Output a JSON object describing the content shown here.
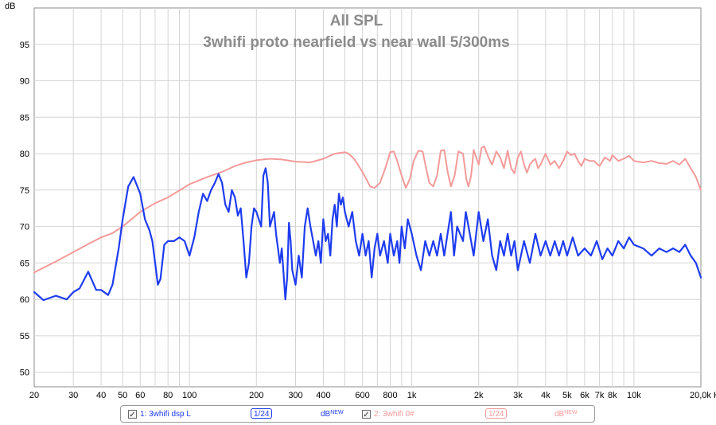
{
  "chart_data": {
    "type": "line",
    "title": "All SPL",
    "subtitle": "3whifi proto nearfield vs near wall 5/300ms",
    "ylabel": "dB",
    "xunit": "Hz",
    "xscale": "log",
    "xlim": [
      20,
      20000
    ],
    "ylim": [
      48,
      100
    ],
    "yticks": [
      50,
      55,
      60,
      65,
      70,
      75,
      80,
      85,
      90,
      95
    ],
    "xticks": [
      {
        "v": 20,
        "label": "20"
      },
      {
        "v": 30,
        "label": "30"
      },
      {
        "v": 40,
        "label": "40"
      },
      {
        "v": 50,
        "label": "50"
      },
      {
        "v": 60,
        "label": "60"
      },
      {
        "v": 80,
        "label": "80"
      },
      {
        "v": 100,
        "label": "100"
      },
      {
        "v": 200,
        "label": "200"
      },
      {
        "v": 300,
        "label": "300"
      },
      {
        "v": 400,
        "label": "400"
      },
      {
        "v": 600,
        "label": "600"
      },
      {
        "v": 800,
        "label": "800"
      },
      {
        "v": 1000,
        "label": "1k"
      },
      {
        "v": 2000,
        "label": "2k"
      },
      {
        "v": 3000,
        "label": "3k"
      },
      {
        "v": 4000,
        "label": "4k"
      },
      {
        "v": 5000,
        "label": "5k"
      },
      {
        "v": 6000,
        "label": "6k"
      },
      {
        "v": 7000,
        "label": "7k"
      },
      {
        "v": 8000,
        "label": "8k"
      },
      {
        "v": 10000,
        "label": "10k"
      },
      {
        "v": 20000,
        "label": "20,0k Hz"
      }
    ],
    "grid": true,
    "legend": "bottom",
    "series": [
      {
        "name": "1: 3whifi dsp L",
        "color": "#1e3cf0",
        "smoothing": "1/24",
        "unit_label": "dB",
        "unit_badge": "NEW",
        "points": [
          [
            20,
            61.0
          ],
          [
            22,
            59.9
          ],
          [
            25,
            60.5
          ],
          [
            28,
            60.0
          ],
          [
            30,
            61.0
          ],
          [
            32,
            61.5
          ],
          [
            35,
            63.8
          ],
          [
            38,
            61.3
          ],
          [
            40,
            61.3
          ],
          [
            43,
            60.6
          ],
          [
            45,
            62.0
          ],
          [
            48,
            67.0
          ],
          [
            50,
            71.0
          ],
          [
            53,
            75.5
          ],
          [
            56,
            76.8
          ],
          [
            60,
            74.5
          ],
          [
            63,
            71.0
          ],
          [
            66,
            69.5
          ],
          [
            68,
            68.0
          ],
          [
            70,
            65.0
          ],
          [
            72,
            62.0
          ],
          [
            74,
            62.8
          ],
          [
            77,
            67.5
          ],
          [
            80,
            68.0
          ],
          [
            85,
            68.0
          ],
          [
            90,
            68.5
          ],
          [
            95,
            68.0
          ],
          [
            100,
            66.0
          ],
          [
            105,
            68.5
          ],
          [
            110,
            72.0
          ],
          [
            115,
            74.5
          ],
          [
            120,
            73.5
          ],
          [
            125,
            75.0
          ],
          [
            130,
            76.0
          ],
          [
            135,
            77.2
          ],
          [
            140,
            76.0
          ],
          [
            145,
            73.0
          ],
          [
            150,
            72.0
          ],
          [
            155,
            75.0
          ],
          [
            160,
            74.0
          ],
          [
            165,
            71.5
          ],
          [
            170,
            72.5
          ],
          [
            175,
            68.0
          ],
          [
            180,
            63.0
          ],
          [
            185,
            65.0
          ],
          [
            190,
            70.0
          ],
          [
            195,
            72.5
          ],
          [
            200,
            72.0
          ],
          [
            210,
            70.0
          ],
          [
            215,
            77.0
          ],
          [
            220,
            78.0
          ],
          [
            225,
            76.0
          ],
          [
            230,
            70.0
          ],
          [
            240,
            72.0
          ],
          [
            245,
            69.0
          ],
          [
            250,
            67.0
          ],
          [
            255,
            65.0
          ],
          [
            260,
            67.0
          ],
          [
            270,
            60.0
          ],
          [
            275,
            63.0
          ],
          [
            280,
            70.5
          ],
          [
            285,
            68.0
          ],
          [
            290,
            64.0
          ],
          [
            300,
            62.0
          ],
          [
            310,
            66.0
          ],
          [
            320,
            63.0
          ],
          [
            330,
            70.0
          ],
          [
            340,
            72.5
          ],
          [
            350,
            70.0
          ],
          [
            360,
            68.0
          ],
          [
            370,
            66.0
          ],
          [
            380,
            68.0
          ],
          [
            390,
            65.0
          ],
          [
            400,
            71.0
          ],
          [
            410,
            68.0
          ],
          [
            420,
            69.0
          ],
          [
            430,
            66.0
          ],
          [
            440,
            71.0
          ],
          [
            450,
            73.0
          ],
          [
            460,
            70.0
          ],
          [
            470,
            74.5
          ],
          [
            480,
            73.0
          ],
          [
            490,
            74.0
          ],
          [
            500,
            72.0
          ],
          [
            520,
            70.0
          ],
          [
            540,
            72.0
          ],
          [
            560,
            68.0
          ],
          [
            580,
            66.0
          ],
          [
            600,
            69.0
          ],
          [
            620,
            66.0
          ],
          [
            640,
            68.0
          ],
          [
            660,
            63.0
          ],
          [
            680,
            67.0
          ],
          [
            700,
            69.0
          ],
          [
            720,
            66.0
          ],
          [
            750,
            68.0
          ],
          [
            780,
            65.0
          ],
          [
            800,
            69.0
          ],
          [
            830,
            66.0
          ],
          [
            860,
            68.0
          ],
          [
            880,
            65.0
          ],
          [
            900,
            70.0
          ],
          [
            930,
            67.0
          ],
          [
            960,
            71.0
          ],
          [
            1000,
            69.0
          ],
          [
            1050,
            66.0
          ],
          [
            1100,
            64.0
          ],
          [
            1150,
            68.0
          ],
          [
            1200,
            66.0
          ],
          [
            1250,
            68.0
          ],
          [
            1300,
            66.0
          ],
          [
            1350,
            69.0
          ],
          [
            1400,
            66.0
          ],
          [
            1500,
            72.0
          ],
          [
            1550,
            66.0
          ],
          [
            1600,
            70.0
          ],
          [
            1700,
            68.0
          ],
          [
            1750,
            72.0
          ],
          [
            1800,
            70.0
          ],
          [
            1900,
            66.0
          ],
          [
            2000,
            72.0
          ],
          [
            2100,
            68.0
          ],
          [
            2200,
            71.0
          ],
          [
            2300,
            66.0
          ],
          [
            2400,
            64.0
          ],
          [
            2500,
            68.0
          ],
          [
            2600,
            66.0
          ],
          [
            2700,
            69.0
          ],
          [
            2800,
            66.0
          ],
          [
            2900,
            68.0
          ],
          [
            3000,
            64.0
          ],
          [
            3200,
            68.0
          ],
          [
            3400,
            65.0
          ],
          [
            3600,
            69.0
          ],
          [
            3800,
            66.0
          ],
          [
            4000,
            68.0
          ],
          [
            4200,
            66.0
          ],
          [
            4400,
            68.0
          ],
          [
            4600,
            66.0
          ],
          [
            4800,
            68.0
          ],
          [
            5000,
            66.0
          ],
          [
            5300,
            68.5
          ],
          [
            5600,
            66.0
          ],
          [
            6000,
            67.0
          ],
          [
            6400,
            66.0
          ],
          [
            6800,
            68.0
          ],
          [
            7200,
            65.5
          ],
          [
            7600,
            67.0
          ],
          [
            8000,
            66.0
          ],
          [
            8500,
            68.0
          ],
          [
            9000,
            67.0
          ],
          [
            9500,
            68.5
          ],
          [
            10000,
            67.5
          ],
          [
            11000,
            67.0
          ],
          [
            12000,
            66.0
          ],
          [
            13000,
            67.0
          ],
          [
            14000,
            66.5
          ],
          [
            15000,
            67.0
          ],
          [
            16000,
            66.5
          ],
          [
            17000,
            67.5
          ],
          [
            18000,
            66.0
          ],
          [
            19000,
            65.0
          ],
          [
            20000,
            63.0
          ]
        ]
      },
      {
        "name": "2: 3whifi 0#",
        "color": "#f49a9a",
        "smoothing": "1/24",
        "unit_label": "dB",
        "unit_badge": "NEW",
        "points": [
          [
            20,
            63.7
          ],
          [
            25,
            65.2
          ],
          [
            30,
            66.5
          ],
          [
            35,
            67.6
          ],
          [
            40,
            68.5
          ],
          [
            45,
            69.1
          ],
          [
            50,
            70.0
          ],
          [
            60,
            72.0
          ],
          [
            70,
            73.2
          ],
          [
            80,
            74.0
          ],
          [
            100,
            75.8
          ],
          [
            120,
            76.8
          ],
          [
            140,
            77.5
          ],
          [
            160,
            78.3
          ],
          [
            180,
            78.8
          ],
          [
            200,
            79.1
          ],
          [
            230,
            79.3
          ],
          [
            260,
            79.2
          ],
          [
            300,
            78.9
          ],
          [
            350,
            78.8
          ],
          [
            400,
            79.3
          ],
          [
            450,
            80.0
          ],
          [
            500,
            80.2
          ],
          [
            520,
            80.0
          ],
          [
            550,
            79.3
          ],
          [
            600,
            77.5
          ],
          [
            650,
            75.5
          ],
          [
            680,
            75.3
          ],
          [
            720,
            76.0
          ],
          [
            760,
            78.0
          ],
          [
            800,
            80.2
          ],
          [
            830,
            80.3
          ],
          [
            860,
            79.0
          ],
          [
            900,
            77.0
          ],
          [
            940,
            75.3
          ],
          [
            980,
            76.5
          ],
          [
            1020,
            79.0
          ],
          [
            1070,
            80.4
          ],
          [
            1120,
            80.3
          ],
          [
            1160,
            78.0
          ],
          [
            1200,
            76.0
          ],
          [
            1250,
            75.5
          ],
          [
            1300,
            77.0
          ],
          [
            1350,
            80.4
          ],
          [
            1400,
            80.5
          ],
          [
            1450,
            77.5
          ],
          [
            1500,
            75.5
          ],
          [
            1560,
            77.0
          ],
          [
            1620,
            80.3
          ],
          [
            1700,
            80.0
          ],
          [
            1760,
            76.5
          ],
          [
            1800,
            75.5
          ],
          [
            1850,
            77.0
          ],
          [
            1900,
            80.5
          ],
          [
            1950,
            79.5
          ],
          [
            2000,
            78.5
          ],
          [
            2060,
            80.8
          ],
          [
            2120,
            81.0
          ],
          [
            2180,
            80.0
          ],
          [
            2250,
            79.0
          ],
          [
            2300,
            78.5
          ],
          [
            2400,
            80.3
          ],
          [
            2500,
            79.5
          ],
          [
            2600,
            78.0
          ],
          [
            2700,
            80.4
          ],
          [
            2800,
            78.0
          ],
          [
            2900,
            77.3
          ],
          [
            3000,
            79.5
          ],
          [
            3100,
            80.3
          ],
          [
            3200,
            78.5
          ],
          [
            3300,
            77.4
          ],
          [
            3400,
            78.5
          ],
          [
            3500,
            79.0
          ],
          [
            3600,
            79.3
          ],
          [
            3700,
            78.0
          ],
          [
            3800,
            78.5
          ],
          [
            4000,
            80.0
          ],
          [
            4200,
            78.5
          ],
          [
            4400,
            79.0
          ],
          [
            4600,
            78.0
          ],
          [
            4800,
            79.0
          ],
          [
            5000,
            80.3
          ],
          [
            5200,
            79.8
          ],
          [
            5400,
            80.0
          ],
          [
            5600,
            79.0
          ],
          [
            5800,
            78.3
          ],
          [
            6000,
            79.3
          ],
          [
            6300,
            79.0
          ],
          [
            6600,
            79.0
          ],
          [
            7000,
            78.3
          ],
          [
            7400,
            79.5
          ],
          [
            7800,
            79.0
          ],
          [
            8000,
            79.8
          ],
          [
            8500,
            79.0
          ],
          [
            9000,
            79.3
          ],
          [
            9500,
            79.7
          ],
          [
            10000,
            79.0
          ],
          [
            11000,
            78.8
          ],
          [
            12000,
            79.0
          ],
          [
            13000,
            78.7
          ],
          [
            14000,
            78.6
          ],
          [
            15000,
            79.0
          ],
          [
            16000,
            78.5
          ],
          [
            17000,
            79.3
          ],
          [
            18000,
            78.0
          ],
          [
            19000,
            76.8
          ],
          [
            20000,
            75.0
          ]
        ]
      }
    ]
  }
}
